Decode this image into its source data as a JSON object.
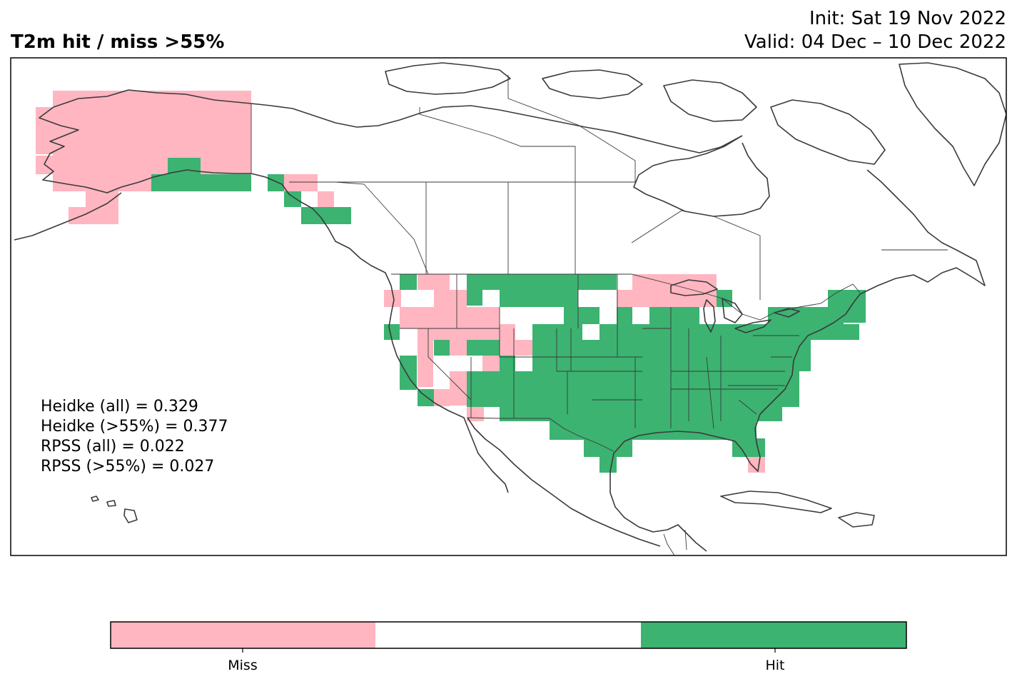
{
  "header": {
    "title": "T2m hit / miss  >55%",
    "init": "Init: Sat 19 Nov 2022",
    "valid": "Valid: 04 Dec – 10 Dec 2022"
  },
  "stats": {
    "heidke_all": "Heidke (all) = 0.329",
    "heidke_55": "Heidke (>55%) = 0.377",
    "rpss_all": "RPSS (all) = 0.022",
    "rpss_55": "RPSS (>55%) = 0.027"
  },
  "colorbar": {
    "labels": [
      "Miss",
      "Hit"
    ],
    "colors": {
      "miss": "#ffb6c1",
      "neutral": "#ffffff",
      "hit": "#3cb371"
    }
  },
  "colors": {
    "miss": "#ffb6c1",
    "hit": "#3cb371",
    "coast": "#3a3a3a"
  }
}
